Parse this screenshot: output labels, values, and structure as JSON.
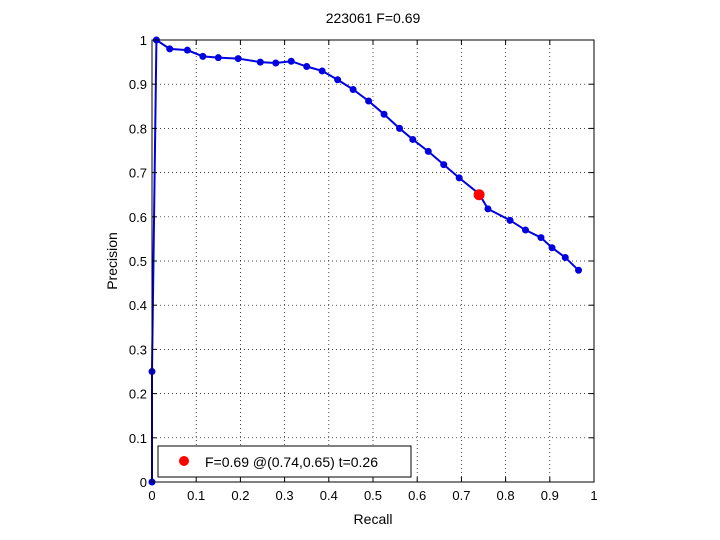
{
  "chart_data": {
    "type": "line",
    "title": "223061 F=0.69",
    "xlabel": "Recall",
    "ylabel": "Precision",
    "xlim": [
      0,
      1
    ],
    "ylim": [
      0,
      1
    ],
    "xticks": [
      "0",
      "0.1",
      "0.2",
      "0.3",
      "0.4",
      "0.5",
      "0.6",
      "0.7",
      "0.8",
      "0.9",
      "1"
    ],
    "yticks": [
      "0",
      "0.1",
      "0.2",
      "0.3",
      "0.4",
      "0.5",
      "0.6",
      "0.7",
      "0.8",
      "0.9",
      "1"
    ],
    "grid": true,
    "series": [
      {
        "color": "#0000e0",
        "x": [
          0.0,
          0.0,
          0.01,
          0.04,
          0.08,
          0.115,
          0.15,
          0.195,
          0.245,
          0.28,
          0.315,
          0.35,
          0.385,
          0.42,
          0.455,
          0.49,
          0.525,
          0.56,
          0.59,
          0.625,
          0.66,
          0.695,
          0.74,
          0.76,
          0.81,
          0.845,
          0.88,
          0.905,
          0.935,
          0.965
        ],
        "y": [
          0.0,
          0.25,
          1.0,
          0.98,
          0.977,
          0.963,
          0.96,
          0.958,
          0.95,
          0.948,
          0.952,
          0.94,
          0.93,
          0.91,
          0.888,
          0.862,
          0.832,
          0.8,
          0.775,
          0.748,
          0.718,
          0.688,
          0.652,
          0.618,
          0.592,
          0.57,
          0.553,
          0.53,
          0.508,
          0.479
        ]
      }
    ],
    "highlight_point": {
      "x": 0.74,
      "y": 0.65,
      "color": "#ff0000"
    },
    "legend": {
      "text": "F=0.69 @(0.74,0.65) t=0.26",
      "location": "bottom-left"
    }
  }
}
